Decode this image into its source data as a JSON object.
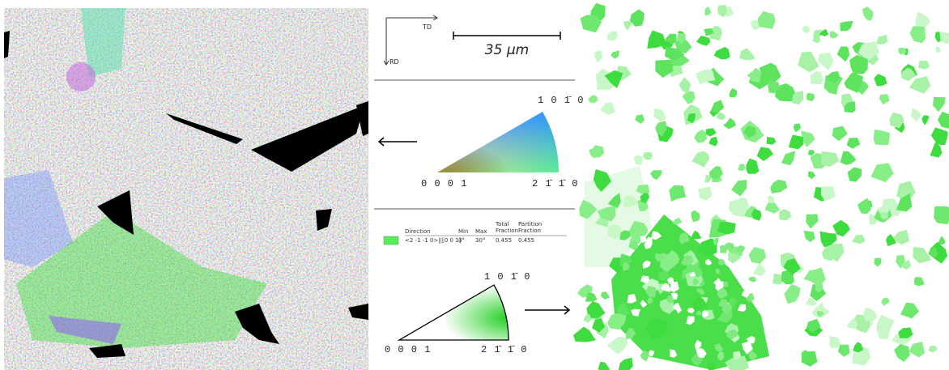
{
  "orientation_axes": {
    "td": "TD",
    "rd": "RD"
  },
  "scale_bar": "35 µm",
  "ipf_key": {
    "top": "1 0 1̄ 0",
    "left": "0 0 0 1",
    "right": "2 1̄ 1̄ 0"
  },
  "legend_table": {
    "header": [
      "Direction",
      "Min",
      "Max",
      [
        "Total",
        "Fraction"
      ],
      [
        "Partition",
        "Fraction"
      ]
    ],
    "row": [
      "<2 -1 -1 0>||[0 0 1]",
      "0°",
      "30°",
      "0.455",
      "0.455"
    ]
  },
  "selection_key": {
    "top": "1 0 1̄ 0",
    "left": "0 0 0 1",
    "right": "2 1̄ 1̄ 0"
  }
}
